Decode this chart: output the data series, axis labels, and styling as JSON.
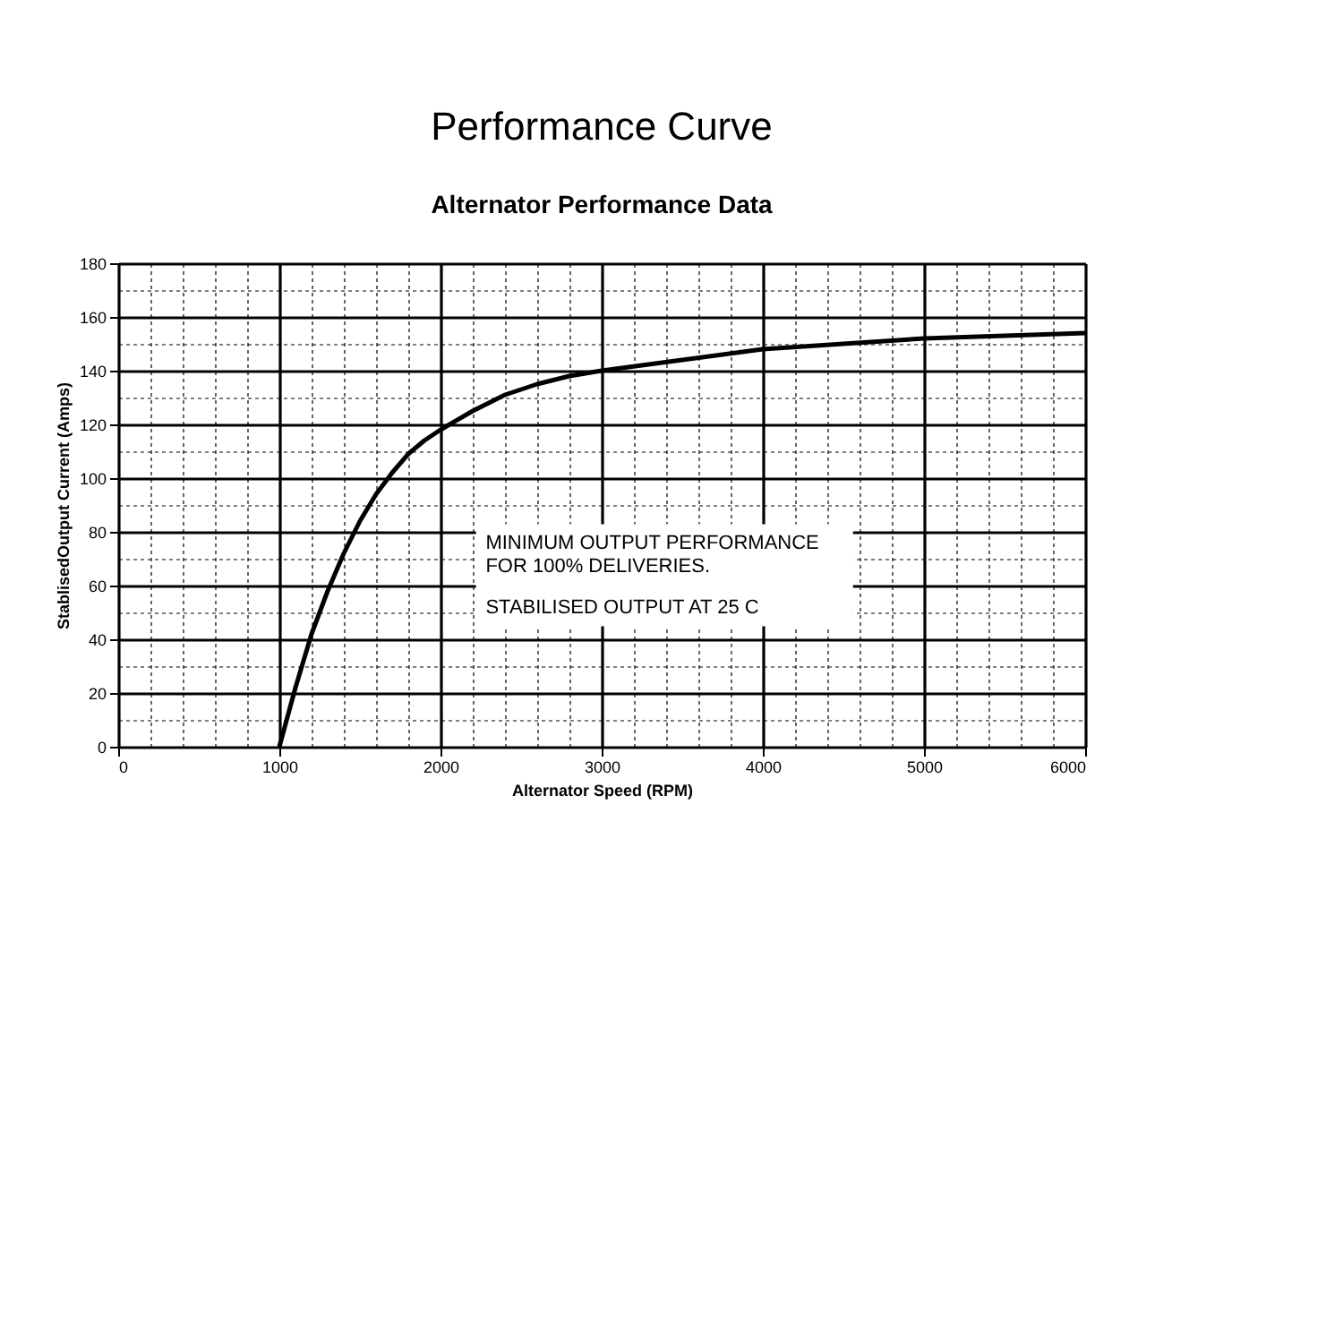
{
  "chart_data": {
    "type": "line",
    "title": "Performance Curve",
    "subtitle": "Alternator Performance Data",
    "xlabel": "Alternator Speed (RPM)",
    "ylabel": "StablisedOutput Current (Amps)",
    "x": [
      1000,
      1100,
      1200,
      1300,
      1400,
      1500,
      1600,
      1700,
      1800,
      1900,
      2000,
      2200,
      2400,
      2600,
      2800,
      3000,
      3500,
      4000,
      4500,
      5000,
      5500,
      6000
    ],
    "series": [
      {
        "color": "#000000",
        "values": [
          0,
          22,
          42,
          58,
          72,
          84,
          94,
          102,
          109,
          114,
          118,
          125,
          131,
          135,
          138,
          140,
          144,
          148,
          150,
          152,
          153,
          154
        ]
      }
    ],
    "xlim": [
      0,
      6000
    ],
    "ylim": [
      0,
      180
    ],
    "xticks": [
      0,
      {
        "value": 200,
        "label": null
      },
      {
        "value": 400,
        "label": null
      },
      {
        "value": 600,
        "label": null
      },
      {
        "value": 800,
        "label": null
      },
      1000,
      {
        "value": 1200,
        "label": null
      },
      {
        "value": 1400,
        "label": null
      },
      {
        "value": 1600,
        "label": null
      },
      {
        "value": 1800,
        "label": null
      },
      2000,
      {
        "value": 2200,
        "label": null
      },
      {
        "value": 2400,
        "label": null
      },
      {
        "value": 2600,
        "label": null
      },
      {
        "value": 2800,
        "label": null
      },
      3000,
      {
        "value": 3200,
        "label": null
      },
      {
        "value": 3400,
        "label": null
      },
      {
        "value": 3600,
        "label": null
      },
      {
        "value": 3800,
        "label": null
      },
      4000,
      {
        "value": 4200,
        "label": null
      },
      {
        "value": 4400,
        "label": null
      },
      {
        "value": 4600,
        "label": null
      },
      {
        "value": 4800,
        "label": null
      },
      5000,
      {
        "value": 5200,
        "label": null
      },
      {
        "value": 5400,
        "label": null
      },
      {
        "value": 5600,
        "label": null
      },
      {
        "value": 5800,
        "label": null
      },
      6000
    ],
    "yticks": [
      0,
      {
        "value": 10,
        "label": null
      },
      20,
      {
        "value": 30,
        "label": null
      },
      40,
      {
        "value": 50,
        "label": null
      },
      60,
      {
        "value": 70,
        "label": null
      },
      80,
      {
        "value": 90,
        "label": null
      },
      100,
      {
        "value": 110,
        "label": null
      },
      120,
      {
        "value": 130,
        "label": null
      },
      140,
      {
        "value": 150,
        "label": null
      },
      160,
      {
        "value": 170,
        "label": null
      },
      180
    ],
    "annotations": [
      "MINIMUM OUTPUT PERFORMANCE",
      "FOR 100% DELIVERIES.",
      "STABILISED OUTPUT AT 25 C"
    ],
    "grid": true,
    "marker": "none",
    "line_style": "solid"
  }
}
